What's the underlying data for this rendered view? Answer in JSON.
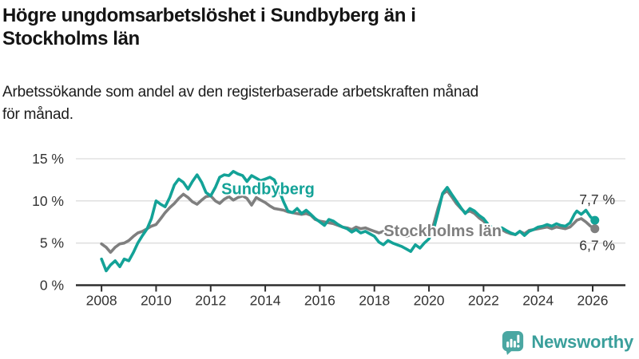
{
  "header": {
    "title_lines": [
      "Högre ungdomsarbetslöshet i Sundbyberg än i",
      "Stockholms län"
    ],
    "subtitle_lines": [
      "Arbetssökande som andel av den registerbaserade arbetskraften månad",
      "för månad."
    ]
  },
  "branding": {
    "logo_text": "Newsworthy",
    "logo_icon": "bar-chart-speech-bubble-icon",
    "logo_color": "#3a9f9b",
    "logo_icon_color": "#4aa7a2"
  },
  "chart_data": {
    "type": "line",
    "x_unit": "decimal_year",
    "xlim": [
      2007.06,
      2027.2
    ],
    "ylim": [
      0,
      15
    ],
    "grid": "horizontal",
    "grid_color": "#dcdcdc",
    "axis_color": "#2e2e2e",
    "tick_label_color": "#333333",
    "x_ticks": [
      2008,
      2010,
      2012,
      2014,
      2016,
      2018,
      2020,
      2022,
      2024,
      2026
    ],
    "x_tick_labels": [
      "2008",
      "2010",
      "2012",
      "2014",
      "2016",
      "2018",
      "2020",
      "2022",
      "2024",
      "2026"
    ],
    "y_ticks": [
      0,
      5,
      10,
      15
    ],
    "y_tick_labels": [
      "0 %",
      "5 %",
      "10 %",
      "15 %"
    ],
    "x": [
      2008,
      2008.17,
      2008.33,
      2008.5,
      2008.67,
      2008.83,
      2009,
      2009.17,
      2009.33,
      2009.5,
      2009.67,
      2009.83,
      2010,
      2010.17,
      2010.33,
      2010.5,
      2010.67,
      2010.83,
      2011,
      2011.17,
      2011.33,
      2011.5,
      2011.67,
      2011.83,
      2012,
      2012.17,
      2012.33,
      2012.5,
      2012.67,
      2012.83,
      2013,
      2013.17,
      2013.33,
      2013.5,
      2013.67,
      2013.83,
      2014,
      2014.17,
      2014.33,
      2014.5,
      2014.67,
      2014.83,
      2015,
      2015.17,
      2015.33,
      2015.5,
      2015.67,
      2015.83,
      2016,
      2016.17,
      2016.33,
      2016.5,
      2016.67,
      2016.83,
      2017,
      2017.17,
      2017.33,
      2017.5,
      2017.67,
      2017.83,
      2018,
      2018.17,
      2018.33,
      2018.5,
      2018.67,
      2018.83,
      2019,
      2019.17,
      2019.33,
      2019.5,
      2019.67,
      2019.83,
      2020,
      2020.17,
      2020.33,
      2020.5,
      2020.67,
      2020.83,
      2021,
      2021.17,
      2021.33,
      2021.5,
      2021.67,
      2021.83,
      2022,
      2022.17,
      2022.33,
      2022.5,
      2022.67,
      2022.83,
      2023,
      2023.17,
      2023.33,
      2023.5,
      2023.67,
      2023.83,
      2024,
      2024.17,
      2024.33,
      2024.5,
      2024.67,
      2024.83,
      2025,
      2025.17,
      2025.33,
      2025.42,
      2025.58,
      2025.75,
      2025.92,
      2026.08
    ],
    "series": [
      {
        "name": "Sundbyberg",
        "color": "#13a297",
        "end_label": "7,7 %",
        "end_value": 7.7,
        "label_anchor": {
          "x": 2014.1,
          "y": 10.8
        },
        "values": [
          3.1,
          1.7,
          2.4,
          2.9,
          2.2,
          3.1,
          2.9,
          3.9,
          5.0,
          5.9,
          6.7,
          7.9,
          10.0,
          9.6,
          9.3,
          10.4,
          11.9,
          12.6,
          12.2,
          11.4,
          12.3,
          13.1,
          12.2,
          11.0,
          10.6,
          11.6,
          12.8,
          13.1,
          13.0,
          13.5,
          13.2,
          13.0,
          12.3,
          13.0,
          12.7,
          12.4,
          12.6,
          12.8,
          12.5,
          11.3,
          9.9,
          8.8,
          8.6,
          9.1,
          8.5,
          8.9,
          8.4,
          7.9,
          7.5,
          7.1,
          7.8,
          7.6,
          7.2,
          6.9,
          6.7,
          6.3,
          6.6,
          6.2,
          6.4,
          6.1,
          5.8,
          5.1,
          4.8,
          5.3,
          5.0,
          4.8,
          4.6,
          4.3,
          4.0,
          4.8,
          4.4,
          5.0,
          5.5,
          6.6,
          8.6,
          10.9,
          11.6,
          10.8,
          10.0,
          9.2,
          8.5,
          9.1,
          8.8,
          8.3,
          7.9,
          7.2,
          6.8,
          6.6,
          6.8,
          6.5,
          6.2,
          6.0,
          6.4,
          5.9,
          6.4,
          6.6,
          6.9,
          7.0,
          7.2,
          7.0,
          7.3,
          7.1,
          7.0,
          7.4,
          8.4,
          8.8,
          8.4,
          8.9,
          8.1,
          7.7
        ]
      },
      {
        "name": "Stockholms län",
        "color": "#7f7f7f",
        "end_label": "6,7 %",
        "end_value": 6.7,
        "label_anchor": {
          "x": 2020.5,
          "y": 5.8
        },
        "values": [
          4.9,
          4.5,
          3.9,
          4.5,
          4.9,
          5.0,
          5.3,
          5.8,
          6.2,
          6.4,
          6.7,
          7.0,
          7.2,
          7.9,
          8.6,
          9.2,
          9.7,
          10.3,
          10.8,
          10.4,
          9.9,
          9.6,
          10.1,
          10.5,
          10.6,
          10.0,
          9.7,
          10.2,
          10.5,
          10.1,
          10.4,
          10.6,
          10.3,
          9.5,
          10.4,
          10.1,
          9.8,
          9.4,
          9.1,
          9.0,
          8.9,
          8.7,
          8.6,
          8.5,
          8.4,
          8.5,
          8.3,
          7.8,
          7.6,
          7.5,
          7.4,
          7.3,
          7.1,
          6.9,
          6.8,
          6.6,
          6.9,
          6.7,
          6.8,
          6.6,
          6.4,
          6.2,
          6.4,
          6.3,
          6.1,
          6.0,
          5.9,
          5.8,
          6.0,
          5.9,
          6.0,
          6.1,
          6.3,
          7.2,
          9.1,
          10.8,
          11.2,
          10.5,
          9.7,
          9.1,
          8.6,
          8.8,
          8.5,
          8.0,
          7.6,
          7.0,
          6.7,
          6.4,
          6.6,
          6.3,
          6.1,
          6.0,
          6.4,
          6.1,
          6.5,
          6.6,
          6.7,
          6.8,
          6.9,
          6.7,
          6.9,
          6.8,
          6.7,
          6.9,
          7.4,
          7.7,
          7.9,
          7.5,
          7.0,
          6.7
        ]
      }
    ]
  }
}
